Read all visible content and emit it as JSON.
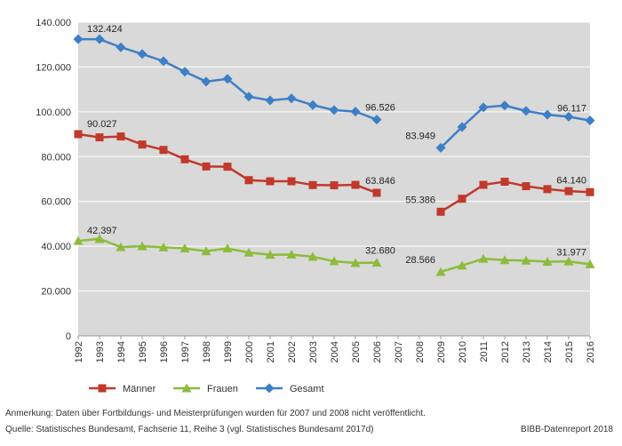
{
  "chart_data": {
    "type": "line",
    "categories": [
      "1992",
      "1993",
      "1994",
      "1995",
      "1996",
      "1997",
      "1998",
      "1999",
      "2000",
      "2001",
      "2002",
      "2003",
      "2004",
      "2005",
      "2006",
      "2007",
      "2008",
      "2009",
      "2010",
      "2011",
      "2012",
      "2013",
      "2014",
      "2015",
      "2016"
    ],
    "ylim": [
      0,
      140000
    ],
    "yticks": [
      0,
      20000,
      40000,
      60000,
      80000,
      100000,
      120000,
      140000
    ],
    "ytick_labels": [
      "0",
      "20.000",
      "40.000",
      "60.000",
      "80.000",
      "100.000",
      "120.000",
      "140.000"
    ],
    "grid": true,
    "legend_position": "bottom",
    "series": [
      {
        "name": "Männer",
        "key": "maenner",
        "color": "#c0392b",
        "marker": "square",
        "values": [
          90027,
          88600,
          89000,
          85400,
          83000,
          78800,
          75600,
          75500,
          69500,
          69000,
          69000,
          67300,
          67200,
          67400,
          63846,
          null,
          null,
          55386,
          61200,
          67400,
          68800,
          66800,
          65500,
          64600,
          64140
        ],
        "labels": [
          {
            "index": 0,
            "text": "90.027"
          },
          {
            "index": 14,
            "text": "63.846"
          },
          {
            "index": 17,
            "text": "55.386"
          },
          {
            "index": 24,
            "text": "64.140"
          }
        ]
      },
      {
        "name": "Frauen",
        "key": "frauen",
        "color": "#8dbb3c",
        "marker": "triangle",
        "values": [
          42397,
          43300,
          39600,
          40000,
          39500,
          39000,
          37800,
          39000,
          37200,
          36200,
          36300,
          35300,
          33300,
          32500,
          32680,
          null,
          null,
          28566,
          31400,
          34400,
          33800,
          33600,
          33100,
          33200,
          31977
        ],
        "labels": [
          {
            "index": 0,
            "text": "42.397"
          },
          {
            "index": 14,
            "text": "32.680"
          },
          {
            "index": 17,
            "text": "28.566"
          },
          {
            "index": 24,
            "text": "31.977"
          }
        ]
      },
      {
        "name": "Gesamt",
        "key": "gesamt",
        "color": "#3d7fc6",
        "marker": "diamond",
        "values": [
          132424,
          132400,
          128800,
          125800,
          122600,
          117900,
          113500,
          114700,
          106800,
          105100,
          106000,
          103000,
          100800,
          100100,
          96526,
          null,
          null,
          83949,
          93200,
          102000,
          102800,
          100400,
          98700,
          97800,
          96117
        ],
        "labels": [
          {
            "index": 0,
            "text": "132.424"
          },
          {
            "index": 14,
            "text": "96.526"
          },
          {
            "index": 17,
            "text": "83.949"
          },
          {
            "index": 24,
            "text": "96.117"
          }
        ]
      }
    ]
  },
  "footer": {
    "note": "Anmerkung: Daten über Fortbildungs- und Meisterprüfungen wurden für 2007 und 2008 nicht veröffentlicht.",
    "source": "Quelle: Statistisches Bundesamt, Fachserie 11, Reihe 3 (vgl. Statistisches Bundesamt 2017d)",
    "brand": "BIBB-Datenreport 2018"
  }
}
